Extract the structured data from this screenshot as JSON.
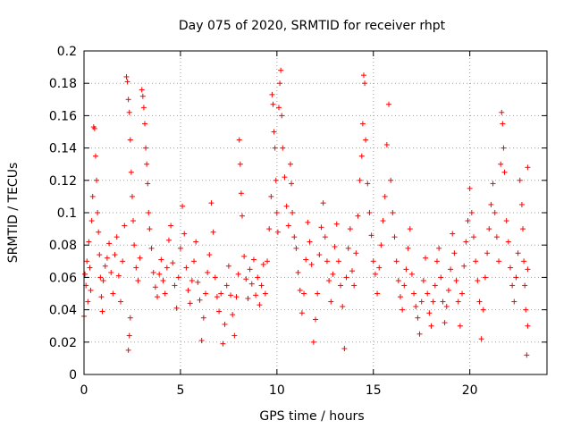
{
  "chart_data": {
    "type": "scatter",
    "title": "Day 075 of 2020, SRMTID for receiver rhpt",
    "xlabel": "GPS time / hours",
    "ylabel": "SRMTID / TECUs",
    "xlim": [
      0,
      24
    ],
    "ylim": [
      0,
      0.2
    ],
    "xticks": [
      0,
      5,
      10,
      15,
      20
    ],
    "xtick_labels": [
      "0",
      "5",
      "10",
      "15",
      "20"
    ],
    "yticks": [
      0,
      0.02,
      0.04,
      0.06,
      0.08,
      0.1,
      0.12,
      0.14,
      0.16,
      0.18,
      0.2
    ],
    "ytick_labels": [
      "0",
      "0.02",
      "0.04",
      "0.06",
      "0.08",
      "0.1",
      "0.12",
      "0.14",
      "0.16",
      "0.18",
      "0.2"
    ],
    "grid": true,
    "marker": "+",
    "color": "#ff0000",
    "series": [
      {
        "name": "SRMTID",
        "points": [
          [
            0.0,
            0.036
          ],
          [
            0.05,
            0.062
          ],
          [
            0.1,
            0.055
          ],
          [
            0.15,
            0.07
          ],
          [
            0.2,
            0.045
          ],
          [
            0.25,
            0.082
          ],
          [
            0.3,
            0.066
          ],
          [
            0.35,
            0.052
          ],
          [
            0.4,
            0.095
          ],
          [
            0.45,
            0.11
          ],
          [
            0.5,
            0.153
          ],
          [
            0.55,
            0.152
          ],
          [
            0.6,
            0.135
          ],
          [
            0.65,
            0.12
          ],
          [
            0.7,
            0.1
          ],
          [
            0.75,
            0.088
          ],
          [
            0.8,
            0.074
          ],
          [
            0.85,
            0.06
          ],
          [
            0.9,
            0.048
          ],
          [
            0.95,
            0.039
          ],
          [
            1.0,
            0.058
          ],
          [
            1.1,
            0.067
          ],
          [
            1.2,
            0.072
          ],
          [
            1.3,
            0.081
          ],
          [
            1.4,
            0.063
          ],
          [
            1.5,
            0.05
          ],
          [
            1.6,
            0.074
          ],
          [
            1.7,
            0.085
          ],
          [
            1.8,
            0.061
          ],
          [
            1.9,
            0.045
          ],
          [
            2.0,
            0.07
          ],
          [
            2.1,
            0.092
          ],
          [
            2.2,
            0.184
          ],
          [
            2.25,
            0.181
          ],
          [
            2.3,
            0.17
          ],
          [
            2.35,
            0.162
          ],
          [
            2.4,
            0.145
          ],
          [
            2.45,
            0.125
          ],
          [
            2.5,
            0.11
          ],
          [
            2.55,
            0.095
          ],
          [
            2.3,
            0.015
          ],
          [
            2.35,
            0.024
          ],
          [
            2.4,
            0.035
          ],
          [
            2.6,
            0.08
          ],
          [
            2.7,
            0.066
          ],
          [
            2.8,
            0.058
          ],
          [
            2.9,
            0.072
          ],
          [
            3.0,
            0.176
          ],
          [
            3.05,
            0.172
          ],
          [
            3.1,
            0.165
          ],
          [
            3.15,
            0.155
          ],
          [
            3.2,
            0.14
          ],
          [
            3.25,
            0.13
          ],
          [
            3.3,
            0.118
          ],
          [
            3.35,
            0.1
          ],
          [
            3.4,
            0.09
          ],
          [
            3.5,
            0.078
          ],
          [
            3.6,
            0.063
          ],
          [
            3.7,
            0.054
          ],
          [
            3.8,
            0.048
          ],
          [
            3.9,
            0.062
          ],
          [
            4.0,
            0.071
          ],
          [
            4.1,
            0.058
          ],
          [
            4.2,
            0.05
          ],
          [
            4.3,
            0.066
          ],
          [
            4.4,
            0.083
          ],
          [
            4.5,
            0.092
          ],
          [
            4.6,
            0.069
          ],
          [
            4.7,
            0.055
          ],
          [
            4.8,
            0.041
          ],
          [
            4.9,
            0.06
          ],
          [
            5.0,
            0.078
          ],
          [
            5.1,
            0.104
          ],
          [
            5.2,
            0.087
          ],
          [
            5.3,
            0.066
          ],
          [
            5.4,
            0.052
          ],
          [
            5.5,
            0.044
          ],
          [
            5.6,
            0.058
          ],
          [
            5.7,
            0.07
          ],
          [
            5.8,
            0.082
          ],
          [
            5.9,
            0.057
          ],
          [
            6.0,
            0.046
          ],
          [
            6.1,
            0.021
          ],
          [
            6.2,
            0.035
          ],
          [
            6.3,
            0.05
          ],
          [
            6.4,
            0.063
          ],
          [
            6.5,
            0.074
          ],
          [
            6.6,
            0.106
          ],
          [
            6.7,
            0.088
          ],
          [
            6.8,
            0.06
          ],
          [
            6.9,
            0.048
          ],
          [
            7.0,
            0.039
          ],
          [
            7.1,
            0.05
          ],
          [
            7.2,
            0.019
          ],
          [
            7.3,
            0.031
          ],
          [
            7.4,
            0.055
          ],
          [
            7.5,
            0.067
          ],
          [
            7.6,
            0.049
          ],
          [
            7.7,
            0.037
          ],
          [
            7.8,
            0.024
          ],
          [
            7.9,
            0.048
          ],
          [
            8.0,
            0.062
          ],
          [
            8.05,
            0.145
          ],
          [
            8.1,
            0.13
          ],
          [
            8.15,
            0.112
          ],
          [
            8.2,
            0.098
          ],
          [
            8.3,
            0.073
          ],
          [
            8.4,
            0.059
          ],
          [
            8.5,
            0.047
          ],
          [
            8.6,
            0.065
          ],
          [
            8.7,
            0.056
          ],
          [
            8.8,
            0.071
          ],
          [
            8.9,
            0.049
          ],
          [
            9.0,
            0.06
          ],
          [
            9.1,
            0.043
          ],
          [
            9.2,
            0.055
          ],
          [
            9.3,
            0.068
          ],
          [
            9.4,
            0.05
          ],
          [
            9.5,
            0.07
          ],
          [
            9.6,
            0.09
          ],
          [
            9.7,
            0.11
          ],
          [
            9.75,
            0.173
          ],
          [
            9.8,
            0.167
          ],
          [
            9.85,
            0.15
          ],
          [
            9.9,
            0.14
          ],
          [
            9.95,
            0.12
          ],
          [
            10.0,
            0.1
          ],
          [
            10.05,
            0.088
          ],
          [
            10.1,
            0.165
          ],
          [
            10.15,
            0.18
          ],
          [
            10.2,
            0.188
          ],
          [
            10.25,
            0.16
          ],
          [
            10.3,
            0.14
          ],
          [
            10.4,
            0.122
          ],
          [
            10.5,
            0.104
          ],
          [
            10.6,
            0.092
          ],
          [
            10.7,
            0.13
          ],
          [
            10.75,
            0.118
          ],
          [
            10.8,
            0.1
          ],
          [
            10.9,
            0.085
          ],
          [
            11.0,
            0.078
          ],
          [
            11.1,
            0.063
          ],
          [
            11.2,
            0.052
          ],
          [
            11.3,
            0.038
          ],
          [
            11.4,
            0.05
          ],
          [
            11.5,
            0.071
          ],
          [
            11.6,
            0.094
          ],
          [
            11.7,
            0.082
          ],
          [
            11.8,
            0.068
          ],
          [
            11.9,
            0.02
          ],
          [
            12.0,
            0.034
          ],
          [
            12.1,
            0.05
          ],
          [
            12.2,
            0.074
          ],
          [
            12.3,
            0.091
          ],
          [
            12.4,
            0.106
          ],
          [
            12.5,
            0.085
          ],
          [
            12.6,
            0.07
          ],
          [
            12.7,
            0.058
          ],
          [
            12.8,
            0.045
          ],
          [
            12.9,
            0.062
          ],
          [
            13.0,
            0.079
          ],
          [
            13.1,
            0.093
          ],
          [
            13.2,
            0.07
          ],
          [
            13.3,
            0.055
          ],
          [
            13.4,
            0.042
          ],
          [
            13.5,
            0.016
          ],
          [
            13.6,
            0.06
          ],
          [
            13.7,
            0.078
          ],
          [
            13.8,
            0.09
          ],
          [
            13.9,
            0.064
          ],
          [
            14.0,
            0.055
          ],
          [
            14.1,
            0.075
          ],
          [
            14.2,
            0.098
          ],
          [
            14.3,
            0.12
          ],
          [
            14.4,
            0.135
          ],
          [
            14.45,
            0.155
          ],
          [
            14.5,
            0.185
          ],
          [
            14.55,
            0.18
          ],
          [
            14.6,
            0.145
          ],
          [
            14.7,
            0.118
          ],
          [
            14.8,
            0.1
          ],
          [
            14.9,
            0.086
          ],
          [
            15.0,
            0.07
          ],
          [
            15.1,
            0.062
          ],
          [
            15.2,
            0.05
          ],
          [
            15.3,
            0.066
          ],
          [
            15.4,
            0.08
          ],
          [
            15.5,
            0.095
          ],
          [
            15.6,
            0.11
          ],
          [
            15.7,
            0.142
          ],
          [
            15.8,
            0.167
          ],
          [
            15.9,
            0.12
          ],
          [
            16.0,
            0.1
          ],
          [
            16.1,
            0.085
          ],
          [
            16.2,
            0.07
          ],
          [
            16.3,
            0.058
          ],
          [
            16.4,
            0.048
          ],
          [
            16.5,
            0.04
          ],
          [
            16.6,
            0.055
          ],
          [
            16.7,
            0.065
          ],
          [
            16.8,
            0.078
          ],
          [
            16.9,
            0.09
          ],
          [
            17.0,
            0.062
          ],
          [
            17.1,
            0.05
          ],
          [
            17.2,
            0.042
          ],
          [
            17.3,
            0.035
          ],
          [
            17.4,
            0.025
          ],
          [
            17.5,
            0.045
          ],
          [
            17.6,
            0.058
          ],
          [
            17.7,
            0.072
          ],
          [
            17.8,
            0.05
          ],
          [
            17.9,
            0.038
          ],
          [
            18.0,
            0.03
          ],
          [
            18.1,
            0.045
          ],
          [
            18.2,
            0.055
          ],
          [
            18.3,
            0.07
          ],
          [
            18.4,
            0.078
          ],
          [
            18.5,
            0.06
          ],
          [
            18.6,
            0.045
          ],
          [
            18.7,
            0.032
          ],
          [
            18.8,
            0.042
          ],
          [
            18.9,
            0.052
          ],
          [
            19.0,
            0.065
          ],
          [
            19.1,
            0.087
          ],
          [
            19.2,
            0.075
          ],
          [
            19.3,
            0.058
          ],
          [
            19.4,
            0.045
          ],
          [
            19.5,
            0.03
          ],
          [
            19.6,
            0.05
          ],
          [
            19.7,
            0.067
          ],
          [
            19.8,
            0.082
          ],
          [
            19.9,
            0.095
          ],
          [
            20.0,
            0.115
          ],
          [
            20.1,
            0.1
          ],
          [
            20.2,
            0.085
          ],
          [
            20.3,
            0.07
          ],
          [
            20.4,
            0.058
          ],
          [
            20.5,
            0.045
          ],
          [
            20.6,
            0.022
          ],
          [
            20.7,
            0.04
          ],
          [
            20.8,
            0.06
          ],
          [
            20.9,
            0.075
          ],
          [
            21.0,
            0.09
          ],
          [
            21.1,
            0.105
          ],
          [
            21.2,
            0.118
          ],
          [
            21.3,
            0.1
          ],
          [
            21.4,
            0.085
          ],
          [
            21.5,
            0.07
          ],
          [
            21.6,
            0.13
          ],
          [
            21.65,
            0.162
          ],
          [
            21.7,
            0.155
          ],
          [
            21.75,
            0.14
          ],
          [
            21.8,
            0.125
          ],
          [
            21.9,
            0.095
          ],
          [
            22.0,
            0.082
          ],
          [
            22.1,
            0.066
          ],
          [
            22.2,
            0.055
          ],
          [
            22.3,
            0.045
          ],
          [
            22.4,
            0.06
          ],
          [
            22.5,
            0.075
          ],
          [
            22.6,
            0.12
          ],
          [
            22.7,
            0.105
          ],
          [
            22.75,
            0.09
          ],
          [
            22.8,
            0.07
          ],
          [
            22.85,
            0.055
          ],
          [
            22.9,
            0.04
          ],
          [
            22.95,
            0.012
          ],
          [
            23.0,
            0.128
          ],
          [
            23.0,
            0.065
          ],
          [
            23.0,
            0.03
          ]
        ]
      }
    ]
  }
}
